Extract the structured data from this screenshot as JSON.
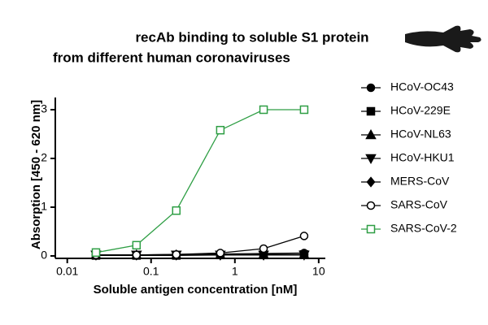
{
  "chart_data": {
    "type": "line",
    "title": [
      "recAb binding to soluble S1 protein",
      "from different human coronaviruses"
    ],
    "x_label": "Soluble antigen concentration [nM]",
    "y_label": "Absorption [450 - 620 nm]",
    "x": [
      0.022,
      0.067,
      0.2,
      0.67,
      2.2,
      6.7
    ],
    "xscale": "log",
    "xlim": [
      0.0072,
      12
    ],
    "xticks": [
      0.01,
      0.1,
      1,
      10
    ],
    "ylim": [
      -0.05,
      3.25
    ],
    "yticks": [
      0,
      1,
      2,
      3
    ],
    "grid": false,
    "legend": "right",
    "series": [
      {
        "name": "HCoV-OC43",
        "color": "#000000",
        "marker": "circle",
        "values": [
          0.02,
          0.02,
          0.03,
          0.04,
          0.05,
          0.06
        ]
      },
      {
        "name": "HCoV-229E",
        "color": "#000000",
        "marker": "square",
        "values": [
          0.01,
          0.01,
          0.01,
          0.02,
          0.02,
          0.03
        ]
      },
      {
        "name": "HCoV-NL63",
        "color": "#000000",
        "marker": "triangle-up",
        "values": [
          0.02,
          0.02,
          0.02,
          0.02,
          0.03,
          0.03
        ]
      },
      {
        "name": "HCoV-HKU1",
        "color": "#000000",
        "marker": "triangle-down",
        "values": [
          0.02,
          0.02,
          0.02,
          0.02,
          0.02,
          0.02
        ]
      },
      {
        "name": "MERS-CoV",
        "color": "#000000",
        "marker": "diamond",
        "values": [
          0.02,
          0.02,
          0.02,
          0.02,
          0.02,
          0.03
        ]
      },
      {
        "name": "SARS-CoV",
        "color": "#000000",
        "marker": "circle-open",
        "values": [
          0.02,
          0.02,
          0.03,
          0.06,
          0.15,
          0.41
        ]
      },
      {
        "name": "SARS-CoV-2",
        "color": "#2e9e44",
        "marker": "square-open",
        "values": [
          0.07,
          0.22,
          0.93,
          2.58,
          3.0,
          3.0
        ]
      }
    ]
  }
}
